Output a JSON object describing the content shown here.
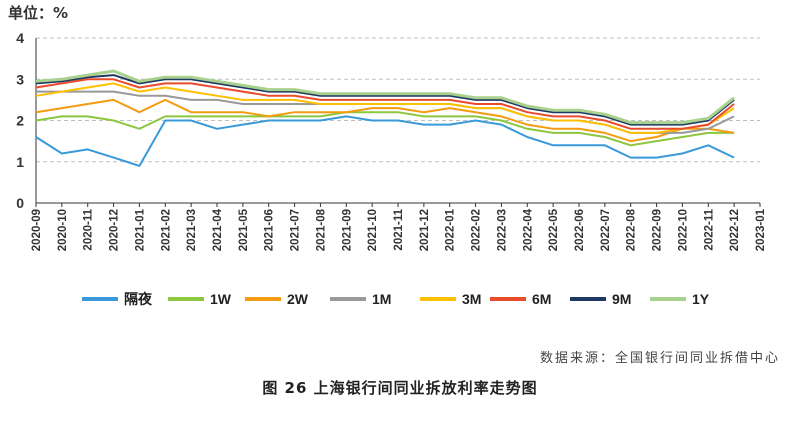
{
  "unit_label": "单位：%",
  "source_text": "数据来源：全国银行间同业拆借中心",
  "caption_text": "图 26    上海银行间同业拆放利率走势图",
  "chart_data": {
    "type": "line",
    "title": "",
    "xlabel": "",
    "ylabel": "",
    "ylim": [
      0,
      4
    ],
    "yticks": [
      0,
      1,
      2,
      3,
      4
    ],
    "grid": "horizontal dashed",
    "legend_placement": "bottom",
    "x_tick_labels": [
      "2020-09",
      "2020-10",
      "2020-11",
      "2020-12",
      "2021-01",
      "2021-02",
      "2021-03",
      "2021-04",
      "2021-05",
      "2021-06",
      "2021-07",
      "2021-08",
      "2021-09",
      "2021-10",
      "2021-11",
      "2021-12",
      "2022-01",
      "2022-02",
      "2022-03",
      "2022-04",
      "2022-05",
      "2022-06",
      "2022-07",
      "2022-08",
      "2022-09",
      "2022-10",
      "2022-11",
      "2022-12",
      "2023-01"
    ],
    "x": [
      "2020-09",
      "2020-10",
      "2020-11",
      "2020-12",
      "2021-01",
      "2021-02",
      "2021-03",
      "2021-04",
      "2021-05",
      "2021-06",
      "2021-07",
      "2021-08",
      "2021-09",
      "2021-10",
      "2021-11",
      "2021-12",
      "2022-01",
      "2022-02",
      "2022-03",
      "2022-04",
      "2022-05",
      "2022-06",
      "2022-07",
      "2022-08",
      "2022-09",
      "2022-10",
      "2022-11",
      "2022-12"
    ],
    "series": [
      {
        "name": "隔夜",
        "color": "#3a9ad9",
        "values": [
          1.6,
          1.2,
          1.3,
          1.1,
          0.9,
          2.0,
          2.0,
          1.8,
          1.9,
          2.0,
          2.0,
          2.0,
          2.1,
          2.0,
          2.0,
          1.9,
          1.9,
          2.0,
          1.9,
          1.6,
          1.4,
          1.4,
          1.4,
          1.1,
          1.1,
          1.2,
          1.4,
          1.1
        ]
      },
      {
        "name": "1W",
        "color": "#8dc63f",
        "values": [
          2.0,
          2.1,
          2.1,
          2.0,
          1.8,
          2.1,
          2.1,
          2.1,
          2.1,
          2.1,
          2.1,
          2.1,
          2.2,
          2.2,
          2.2,
          2.1,
          2.1,
          2.1,
          2.0,
          1.8,
          1.7,
          1.7,
          1.6,
          1.4,
          1.5,
          1.6,
          1.7,
          1.7
        ]
      },
      {
        "name": "2W",
        "color": "#f39c12",
        "values": [
          2.2,
          2.3,
          2.4,
          2.5,
          2.2,
          2.5,
          2.2,
          2.2,
          2.2,
          2.1,
          2.2,
          2.2,
          2.2,
          2.3,
          2.3,
          2.2,
          2.3,
          2.2,
          2.1,
          1.9,
          1.8,
          1.8,
          1.7,
          1.5,
          1.6,
          1.8,
          1.8,
          1.7
        ]
      },
      {
        "name": "1M",
        "color": "#999999",
        "values": [
          2.7,
          2.7,
          2.7,
          2.7,
          2.6,
          2.6,
          2.5,
          2.5,
          2.4,
          2.4,
          2.4,
          2.4,
          2.4,
          2.4,
          2.4,
          2.4,
          2.4,
          2.3,
          2.3,
          2.1,
          2.0,
          2.0,
          1.9,
          1.7,
          1.7,
          1.7,
          1.8,
          2.1
        ]
      },
      {
        "name": "3M",
        "color": "#ffc000",
        "values": [
          2.6,
          2.7,
          2.8,
          2.9,
          2.7,
          2.8,
          2.7,
          2.6,
          2.5,
          2.5,
          2.5,
          2.4,
          2.4,
          2.4,
          2.4,
          2.4,
          2.4,
          2.3,
          2.3,
          2.1,
          2.0,
          2.0,
          1.9,
          1.7,
          1.7,
          1.8,
          1.9,
          2.3
        ]
      },
      {
        "name": "6M",
        "color": "#e84c2c",
        "values": [
          2.8,
          2.9,
          3.0,
          3.0,
          2.8,
          2.9,
          2.9,
          2.8,
          2.7,
          2.6,
          2.6,
          2.5,
          2.5,
          2.5,
          2.5,
          2.5,
          2.5,
          2.4,
          2.4,
          2.2,
          2.1,
          2.1,
          2.0,
          1.8,
          1.8,
          1.8,
          1.9,
          2.4
        ]
      },
      {
        "name": "9M",
        "color": "#1f3864",
        "values": [
          2.9,
          2.95,
          3.05,
          3.1,
          2.9,
          3.0,
          3.0,
          2.9,
          2.8,
          2.7,
          2.7,
          2.6,
          2.6,
          2.6,
          2.6,
          2.6,
          2.6,
          2.5,
          2.5,
          2.3,
          2.2,
          2.2,
          2.1,
          1.9,
          1.9,
          1.9,
          2.0,
          2.5
        ]
      },
      {
        "name": "1Y",
        "color": "#a9d18e",
        "values": [
          2.95,
          3.0,
          3.1,
          3.2,
          2.95,
          3.05,
          3.05,
          2.95,
          2.85,
          2.75,
          2.75,
          2.65,
          2.65,
          2.65,
          2.65,
          2.65,
          2.65,
          2.55,
          2.55,
          2.35,
          2.25,
          2.25,
          2.15,
          1.95,
          1.95,
          1.95,
          2.05,
          2.55
        ]
      }
    ]
  }
}
